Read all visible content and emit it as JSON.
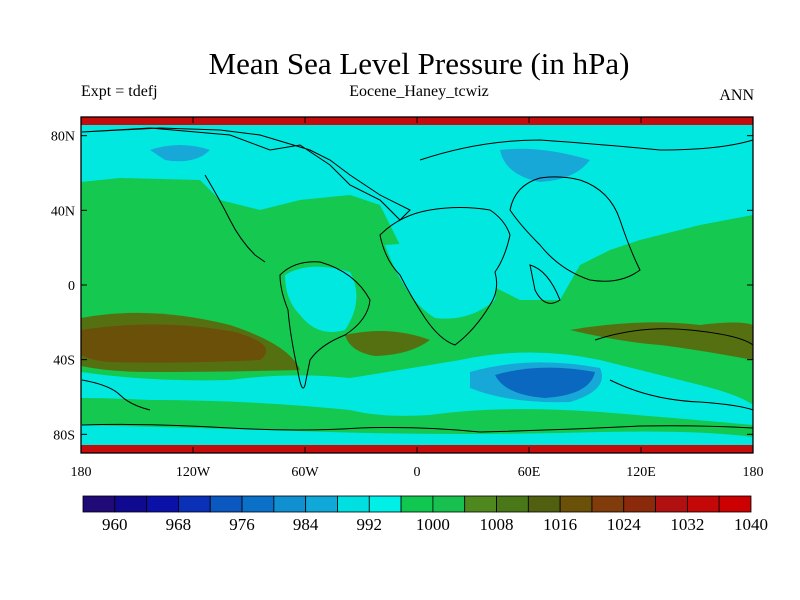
{
  "header": {
    "title": "Mean Sea Level Pressure (in hPa)",
    "left_label": "Expt = tdefj",
    "center_label": "Eocene_Haney_tcwiz",
    "right_label": "ANN"
  },
  "map": {
    "projection": "cylindrical-equidistant",
    "lat_ticks": [
      "80N",
      "40N",
      "0",
      "40S",
      "80S"
    ],
    "lon_ticks": [
      "180",
      "120W",
      "60W",
      "0",
      "60E",
      "120E",
      "180"
    ],
    "fill_colors": {
      "pole_band": "#c40c0c",
      "high_low": "#18a8d8",
      "cyan": "#00e8e0",
      "green_light": "#14c850",
      "green_mid": "#11b850",
      "olive": "#557010",
      "brown": "#6a5008",
      "blue_dark": "#0a68c0"
    }
  },
  "colorbar": {
    "colors": [
      "#200a78",
      "#100a90",
      "#0a10a8",
      "#0a30b8",
      "#0a58c0",
      "#0a70c8",
      "#1090d0",
      "#10a8d8",
      "#00e0e0",
      "#00f0e8",
      "#10c850",
      "#18c050",
      "#508820",
      "#4a7818",
      "#506010",
      "#6a5008",
      "#803c0a",
      "#8a2a0a",
      "#b01010",
      "#c40808",
      "#cc0000"
    ],
    "labels": [
      "960",
      "968",
      "976",
      "984",
      "992",
      "1000",
      "1008",
      "1016",
      "1024",
      "1032",
      "1040"
    ]
  }
}
